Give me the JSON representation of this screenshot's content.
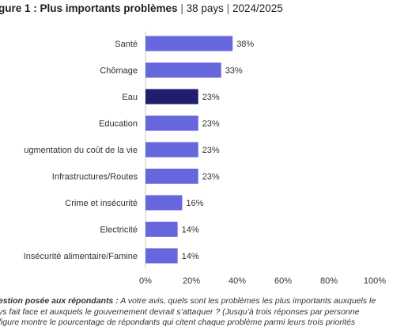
{
  "header": {
    "title_bold": "gure 1 : Plus importants problèmes",
    "separator": "|",
    "subtitle_countries": "38 pays",
    "subtitle_period": "2024/2025"
  },
  "chart_data": {
    "type": "bar",
    "orientation": "horizontal",
    "categories": [
      "Santé",
      "Chômage",
      "Eau",
      "Education",
      "ugmentation du coût de la vie",
      "Infrastructures/Routes",
      "Crime et insécurité",
      "Electricité",
      "Insécurité alimentaire/Famine"
    ],
    "values": [
      38,
      33,
      23,
      23,
      23,
      23,
      16,
      14,
      14
    ],
    "value_labels": [
      "38%",
      "33%",
      "23%",
      "23%",
      "23%",
      "23%",
      "16%",
      "14%",
      "14%"
    ],
    "highlight_index": 2,
    "colors": {
      "bar": "#6666dd",
      "highlight": "#1f1f6e",
      "axis_line": "#c8c8c8"
    },
    "xlim": [
      0,
      100
    ],
    "xticks": [
      0,
      20,
      40,
      60,
      80,
      100
    ],
    "xtick_labels": [
      "0%",
      "20%",
      "40%",
      "60%",
      "80%",
      "100%"
    ],
    "grid": false
  },
  "footnote": {
    "lead": "estion posée aux répondants :",
    "line1_rest": " A votre avis, quels sont les problèmes les plus importants auxquels le",
    "line2": "ys fait face et auxquels le gouvernement devrait s’attaquer ? (Jusqu’à trois réponses par personne",
    "line3": "figure montre le pourcentage de répondants qui citent chaque problème parmi leurs trois priorités"
  }
}
